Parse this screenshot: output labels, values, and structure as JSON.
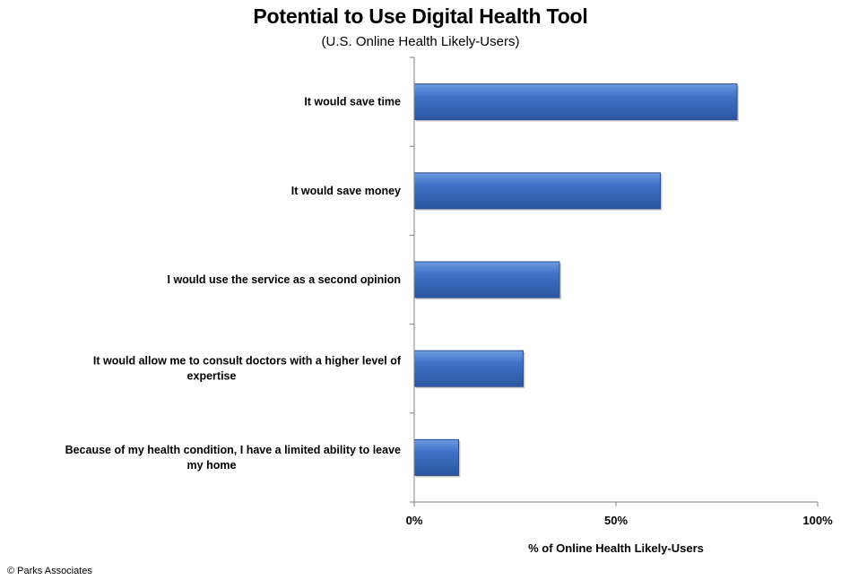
{
  "chart_data": {
    "type": "bar",
    "orientation": "horizontal",
    "title": "Potential to Use Digital Health Tool",
    "subtitle": "(U.S. Online Health Likely-Users)",
    "categories": [
      [
        "It would save time"
      ],
      [
        "It would save money"
      ],
      [
        "I would use the service as a second opinion"
      ],
      [
        "It would allow me to consult doctors with a higher level of",
        "expertise"
      ],
      [
        "Because of my health condition, I have a limited ability to leave",
        "my home"
      ]
    ],
    "values": [
      80,
      61,
      36,
      27,
      11
    ],
    "xlabel": "% of Online Health Likely-Users",
    "ylabel": "",
    "xlim": [
      0,
      100
    ],
    "ticks": [
      {
        "value": 0,
        "label": "0%"
      },
      {
        "value": 50,
        "label": "50%"
      },
      {
        "value": 100,
        "label": "100%"
      }
    ],
    "grid": false,
    "legend": "none",
    "bar_color": "#3f72c6",
    "bar_highlight": "#6d9be2",
    "bar_shadow": "#2b56a0",
    "bar_border": "#2a4f8f"
  },
  "footer": {
    "credit": "© Parks Associates"
  }
}
